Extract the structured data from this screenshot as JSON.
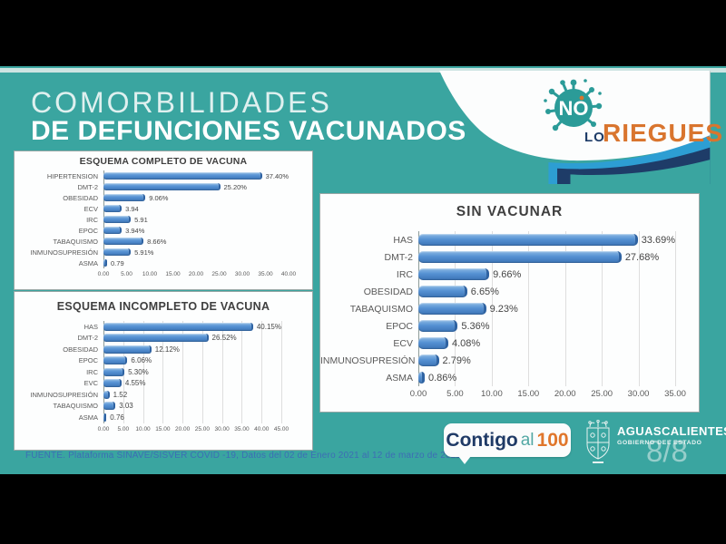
{
  "slide": {
    "title_line1": "COMORBILIDADES",
    "title_line2": "DE DEFUNCIONES VACUNADOS",
    "page_number": "8/8",
    "source": "FUENTE. Plataforma SINAVE/SISVER COVID -19, Datos del 02 de Enero 2021 al 12 de marzo de 2022"
  },
  "no_lo_riegues_logo": {
    "no": "NO",
    "lo": "LO",
    "riegues": "RIEGUES"
  },
  "contigo_logo": {
    "contigo": "Contigo",
    "al": "al",
    "hundred": "100"
  },
  "gobierno_logo": {
    "state": "AGUASCALIENTES",
    "subtitle": "GOBIERNO DEL ESTADO"
  },
  "colors": {
    "teal_background": "#3AA5A0",
    "bar_blue": "#5591D3",
    "accent_orange": "#D9752E",
    "navy": "#1E3C68",
    "light_blue_wave": "#2D9ED3",
    "source_text_blue": "#3D6DB5"
  },
  "chart_data": [
    {
      "type": "bar",
      "orientation": "horizontal",
      "title": "ESQUEMA COMPLETO DE VACUNA",
      "categories": [
        "HIPERTENSION",
        "DMT-2",
        "OBESIDAD",
        "ECV",
        "IRC",
        "EPOC",
        "TABAQUISMO",
        "INMUNOSUPRESIÓN",
        "ASMA"
      ],
      "values": [
        37.4,
        25.2,
        9.06,
        3.94,
        5.91,
        3.94,
        8.66,
        5.91,
        0.79
      ],
      "value_labels": [
        "37.40%",
        "25.20%",
        "9.06%",
        "3.94",
        "5.91",
        "3.94%",
        "8.66%",
        "5.91%",
        "0.79"
      ],
      "xlim": [
        0,
        40
      ],
      "xticks": [
        "0.00",
        "5.00",
        "10.00",
        "15.00",
        "20.00",
        "25.00",
        "30.00",
        "35.00",
        "40.00"
      ],
      "grid": false,
      "legend": "none"
    },
    {
      "type": "bar",
      "orientation": "horizontal",
      "title": "ESQUEMA INCOMPLETO DE VACUNA",
      "categories": [
        "HAS",
        "DMT-2",
        "OBESIDAD",
        "EPOC",
        "IRC",
        "EVC",
        "INMUNOSUPRESIÓN",
        "TABAQUISMO",
        "ASMA"
      ],
      "values": [
        40.15,
        26.52,
        12.12,
        6.06,
        5.3,
        4.55,
        1.52,
        3.03,
        0.76
      ],
      "value_labels": [
        "40.15%",
        "26.52%",
        "12.12%",
        "6.06%",
        "5.30%",
        "4.55%",
        "1.52",
        "3.03",
        "0.76"
      ],
      "xlim": [
        0,
        45
      ],
      "xticks": [
        "0.00",
        "5.00",
        "10.00",
        "15.00",
        "20.00",
        "25.00",
        "30.00",
        "35.00",
        "40.00",
        "45.00"
      ],
      "grid": true,
      "legend": "none"
    },
    {
      "type": "bar",
      "orientation": "horizontal",
      "title": "SIN VACUNAR",
      "categories": [
        "HAS",
        "DMT-2",
        "IRC",
        "OBESIDAD",
        "TABAQUISMO",
        "EPOC",
        "ECV",
        "INMUNOSUPRESIÓN",
        "ASMA"
      ],
      "values": [
        33.69,
        27.68,
        9.66,
        6.65,
        9.23,
        5.36,
        4.08,
        2.79,
        0.86
      ],
      "value_labels": [
        "33.69%",
        "27.68%",
        "9.66%",
        "6.65%",
        "9.23%",
        "5.36%",
        "4.08%",
        "2.79%",
        "0.86%"
      ],
      "xlim": [
        0,
        35
      ],
      "xticks": [
        "0.00",
        "5.00",
        "10.00",
        "15.00",
        "20.00",
        "25.00",
        "30.00",
        "35.00"
      ],
      "grid": true,
      "legend": "none"
    }
  ]
}
